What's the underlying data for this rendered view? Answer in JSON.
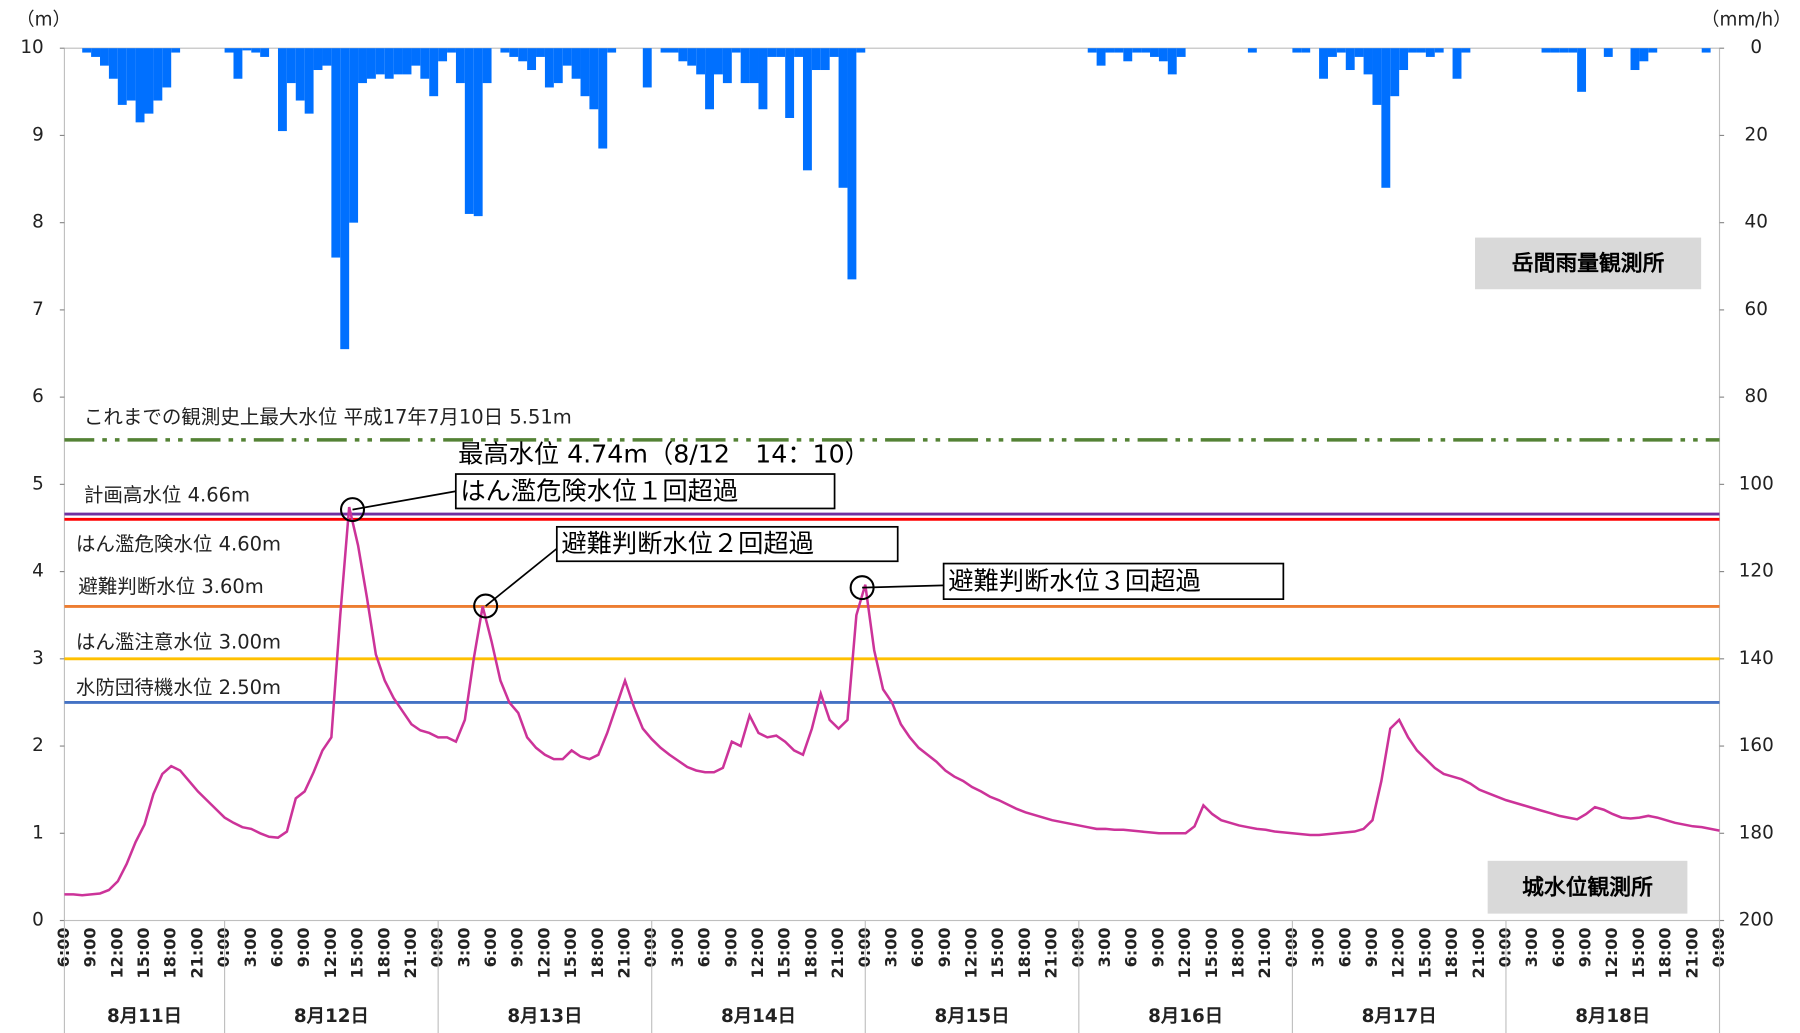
{
  "chart_data": {
    "type": "combo",
    "y_unit": "（m）",
    "y2_unit": "（mm/h）",
    "ylim": [
      0,
      10
    ],
    "yticks": [
      0,
      1,
      2,
      3,
      4,
      5,
      6,
      7,
      8,
      9,
      10
    ],
    "y2lim": [
      0,
      200
    ],
    "y2ticks": [
      0,
      20,
      40,
      60,
      80,
      100,
      120,
      140,
      160,
      180,
      200
    ],
    "y2_inverted": true,
    "time_ticks": [
      "6:00",
      "9:00",
      "12:00",
      "15:00",
      "18:00",
      "21:00",
      "0:00",
      "3:00",
      "6:00",
      "9:00",
      "12:00",
      "15:00",
      "18:00",
      "21:00",
      "0:00",
      "3:00",
      "6:00",
      "9:00",
      "12:00",
      "15:00",
      "18:00",
      "21:00",
      "0:00",
      "3:00",
      "6:00",
      "9:00",
      "12:00",
      "15:00",
      "18:00",
      "21:00",
      "0:00",
      "3:00",
      "6:00",
      "9:00",
      "12:00",
      "15:00",
      "18:00",
      "21:00",
      "0:00",
      "3:00",
      "6:00",
      "9:00",
      "12:00",
      "15:00",
      "18:00",
      "21:00",
      "0:00",
      "3:00",
      "6:00",
      "9:00",
      "12:00",
      "15:00",
      "18:00",
      "21:00",
      "0:00",
      "3:00",
      "6:00",
      "9:00",
      "12:00",
      "15:00",
      "18:00",
      "21:00",
      "0:00"
    ],
    "days": [
      "8月11日",
      "8月12日",
      "8月13日",
      "8月14日",
      "8月15日",
      "8月16日",
      "8月17日",
      "8月18日"
    ],
    "series": [
      {
        "type": "bar",
        "axis": "y2",
        "color": "#0070ff",
        "station": "岳間雨量観測所",
        "values": [
          0,
          0,
          1,
          2,
          4,
          7,
          13,
          12,
          17,
          15,
          12,
          9,
          1,
          0,
          0,
          0,
          0,
          0,
          1,
          7,
          0.5,
          1,
          2,
          0,
          19,
          8,
          12,
          15,
          5,
          4,
          48,
          69,
          40,
          8,
          7,
          6,
          7,
          6,
          6,
          4,
          7,
          11,
          3,
          1,
          8,
          38,
          38.5,
          8,
          0,
          1,
          2,
          3,
          5,
          2,
          9,
          8,
          4,
          7,
          11,
          14,
          23,
          1,
          0,
          0,
          0,
          9,
          0,
          1,
          1,
          3,
          4,
          6,
          14,
          6,
          8,
          1,
          8,
          8,
          14,
          2,
          2,
          16,
          2,
          28,
          5,
          5,
          2,
          32,
          53,
          1,
          0,
          0,
          0,
          0,
          0,
          0,
          0,
          0,
          0,
          0,
          0,
          0,
          0,
          0,
          0,
          0,
          0,
          0,
          0,
          0,
          0,
          0,
          0,
          0,
          0,
          1,
          4,
          1,
          1,
          3,
          1,
          1,
          2,
          3,
          6,
          2,
          0,
          0,
          0,
          0,
          0,
          0,
          0,
          1,
          0,
          0,
          0,
          0,
          1,
          1,
          0,
          7,
          2,
          1,
          5,
          2,
          6,
          13,
          32,
          11,
          5,
          1,
          1,
          2,
          1,
          0,
          7,
          1,
          0,
          0,
          0,
          0,
          0,
          0,
          0,
          0,
          1,
          1,
          1,
          1,
          10,
          0,
          0,
          2,
          0,
          0,
          5,
          3,
          1,
          0,
          0,
          0,
          0,
          0,
          1,
          0
        ]
      },
      {
        "type": "line",
        "axis": "y",
        "color": "#cc3399",
        "station": "城水位観測所",
        "values": [
          0.3,
          0.3,
          0.29,
          0.3,
          0.31,
          0.35,
          0.45,
          0.65,
          0.9,
          1.1,
          1.45,
          1.68,
          1.77,
          1.72,
          1.6,
          1.48,
          1.38,
          1.28,
          1.18,
          1.12,
          1.07,
          1.05,
          1.0,
          0.96,
          0.95,
          1.02,
          1.4,
          1.48,
          1.7,
          1.95,
          2.1,
          3.5,
          4.74,
          4.3,
          3.7,
          3.05,
          2.75,
          2.55,
          2.4,
          2.25,
          2.18,
          2.15,
          2.1,
          2.1,
          2.05,
          2.3,
          3.0,
          3.6,
          3.2,
          2.75,
          2.5,
          2.38,
          2.1,
          1.98,
          1.9,
          1.85,
          1.85,
          1.95,
          1.88,
          1.85,
          1.9,
          2.15,
          2.45,
          2.75,
          2.45,
          2.2,
          2.08,
          1.98,
          1.9,
          1.83,
          1.76,
          1.72,
          1.7,
          1.7,
          1.75,
          2.05,
          2.0,
          2.35,
          2.15,
          2.1,
          2.12,
          2.05,
          1.95,
          1.9,
          2.2,
          2.6,
          2.3,
          2.2,
          2.3,
          3.5,
          3.85,
          3.1,
          2.65,
          2.5,
          2.25,
          2.1,
          1.98,
          1.9,
          1.82,
          1.72,
          1.65,
          1.6,
          1.53,
          1.48,
          1.42,
          1.38,
          1.33,
          1.28,
          1.24,
          1.21,
          1.18,
          1.15,
          1.13,
          1.11,
          1.09,
          1.07,
          1.05,
          1.05,
          1.04,
          1.04,
          1.03,
          1.02,
          1.01,
          1.0,
          1.0,
          1.0,
          1.0,
          1.08,
          1.32,
          1.22,
          1.15,
          1.12,
          1.09,
          1.07,
          1.05,
          1.04,
          1.02,
          1.01,
          1.0,
          0.99,
          0.98,
          0.98,
          0.99,
          1.0,
          1.01,
          1.02,
          1.05,
          1.15,
          1.6,
          2.2,
          2.3,
          2.1,
          1.95,
          1.85,
          1.75,
          1.68,
          1.65,
          1.62,
          1.57,
          1.5,
          1.46,
          1.42,
          1.38,
          1.35,
          1.32,
          1.29,
          1.26,
          1.23,
          1.2,
          1.18,
          1.16,
          1.22,
          1.3,
          1.27,
          1.22,
          1.18,
          1.17,
          1.18,
          1.2,
          1.18,
          1.15,
          1.12,
          1.1,
          1.08,
          1.07,
          1.05,
          1.03
        ]
      }
    ],
    "reference_lines": [
      {
        "label": "これまでの観測史上最大水位  平成17年7月10日 5.51m",
        "value": 5.51,
        "color": "#548235",
        "style": "dash-dot"
      },
      {
        "label": "計画高水位 4.66m",
        "value": 4.66,
        "color": "#7030a0",
        "style": "solid"
      },
      {
        "label": "はん濫危険水位 4.60m",
        "value": 4.6,
        "color": "#ff0000",
        "style": "solid"
      },
      {
        "label": "避難判断水位 3.60m",
        "value": 3.6,
        "color": "#ed7d31",
        "style": "solid"
      },
      {
        "label": "はん濫注意水位 3.00m",
        "value": 3.0,
        "color": "#ffc000",
        "label_color": "#000000",
        "style": "solid"
      },
      {
        "label": "水防団待機水位 2.50m",
        "value": 2.5,
        "color": "#4472c4",
        "style": "solid"
      }
    ],
    "annotations": [
      {
        "note": "最高水位 4.74m（8/12　14：10）",
        "text": "はん濫危険水位１回超過"
      },
      {
        "text": "避難判断水位２回超過"
      },
      {
        "text": "避難判断水位３回超過"
      }
    ]
  }
}
